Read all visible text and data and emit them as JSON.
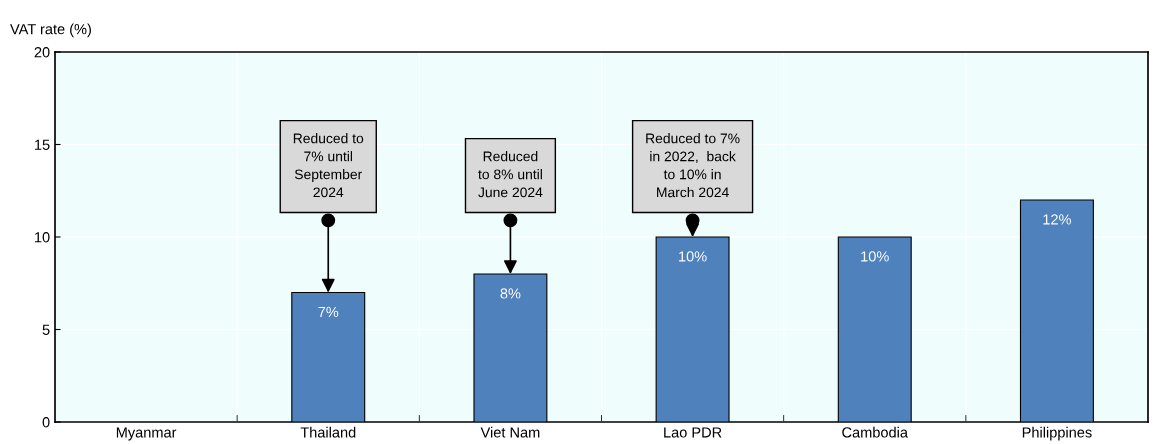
{
  "chart_data": {
    "type": "bar",
    "ylabel": "VAT rate (%)",
    "categories": [
      "Myanmar",
      "Thailand",
      "Viet Nam",
      "Lao PDR",
      "Cambodia",
      "Philippines"
    ],
    "values": [
      null,
      7,
      8,
      10,
      10,
      12
    ],
    "value_labels": [
      null,
      "7%",
      "8%",
      "10%",
      "10%",
      "12%"
    ],
    "color": "#4f81bd",
    "ylim": [
      0,
      20
    ],
    "yticks": [
      0,
      5,
      10,
      15,
      20
    ],
    "grid": true,
    "annotations": [
      "Reduced to\n7% until\nSeptember\n2024",
      "Reduced\nto 8% until\nJune 2024",
      "Reduced to 7%\nin 2022,  back\nto 10% in\nMarch 2024"
    ]
  }
}
